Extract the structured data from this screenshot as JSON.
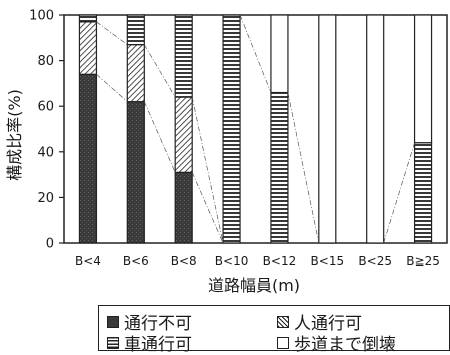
{
  "chart_data": {
    "type": "bar",
    "stacked": true,
    "xlabel": "道路幅員(m)",
    "ylabel": "構成比率(%)",
    "ylim": [
      0,
      100
    ],
    "yticks": [
      "0",
      "20",
      "40",
      "60",
      "80",
      "100"
    ],
    "categories": [
      "B<4",
      "B<6",
      "B<8",
      "B<10",
      "B<12",
      "B<15",
      "B<25",
      "B≧25"
    ],
    "series": [
      {
        "name": "通行不可",
        "pattern": "dark",
        "values": [
          74,
          62,
          31,
          0,
          0,
          0,
          0,
          0
        ]
      },
      {
        "name": "人通行可",
        "pattern": "hatch",
        "values": [
          23,
          25,
          33,
          0,
          0,
          0,
          0,
          0
        ]
      },
      {
        "name": "車通行可",
        "pattern": "stripes",
        "values": [
          3,
          13,
          36,
          100,
          66,
          0,
          0,
          44
        ]
      },
      {
        "name": "歩道まで倒壊",
        "pattern": "white",
        "values": [
          0,
          0,
          0,
          0,
          34,
          100,
          100,
          56
        ]
      }
    ],
    "grid": false,
    "legend_position": "bottom"
  },
  "legend": {
    "items": [
      {
        "label": "通行不可",
        "pattern": "dark"
      },
      {
        "label": "人通行可",
        "pattern": "hatch"
      },
      {
        "label": "車通行可",
        "pattern": "stripes"
      },
      {
        "label": "歩道まで倒壊",
        "pattern": "white"
      }
    ]
  },
  "colors": {
    "ink": "#1a1a1a",
    "dark_fill": "#3a3a3a",
    "background": "#ffffff"
  }
}
